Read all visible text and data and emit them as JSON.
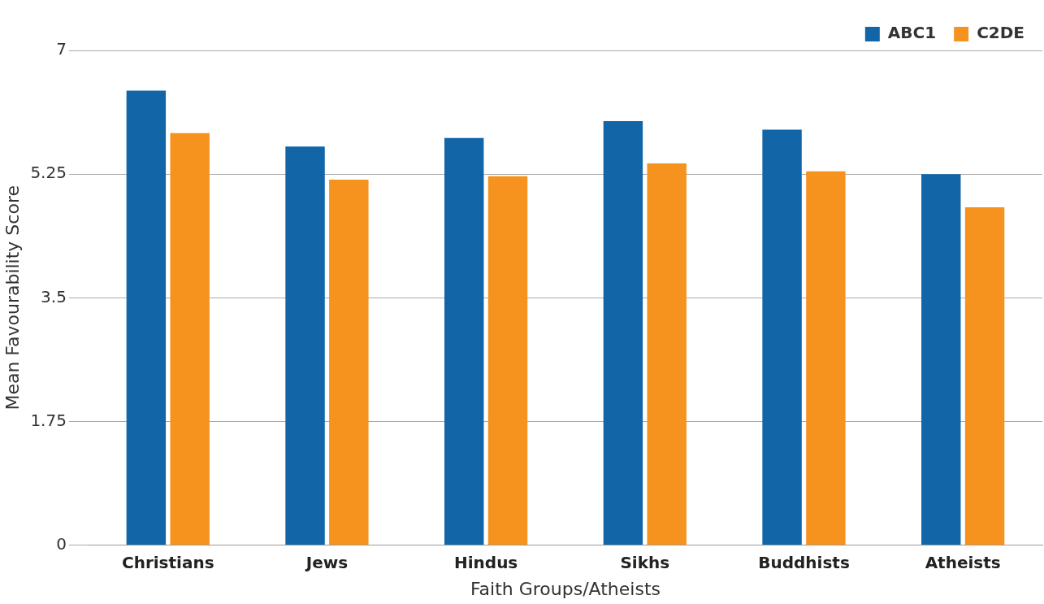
{
  "chart_data": {
    "type": "bar",
    "xlabel": "Faith Groups/Atheists",
    "ylabel": "Mean Favourability Score",
    "categories": [
      "Christians",
      "Jews",
      "Hindus",
      "Sikhs",
      "Buddhists",
      "Atheists"
    ],
    "series": [
      {
        "name": "ABC1",
        "color": "#1266a8",
        "values": [
          6.43,
          5.64,
          5.76,
          6.0,
          5.88,
          5.25
        ]
      },
      {
        "name": "C2DE",
        "color": "#f6931f",
        "values": [
          5.83,
          5.17,
          5.22,
          5.4,
          5.29,
          4.78
        ]
      }
    ],
    "ylim": [
      0,
      7
    ],
    "yticks": [
      0,
      1.75,
      3.5,
      5.25,
      7
    ],
    "grid": "y",
    "legend": "top right"
  }
}
